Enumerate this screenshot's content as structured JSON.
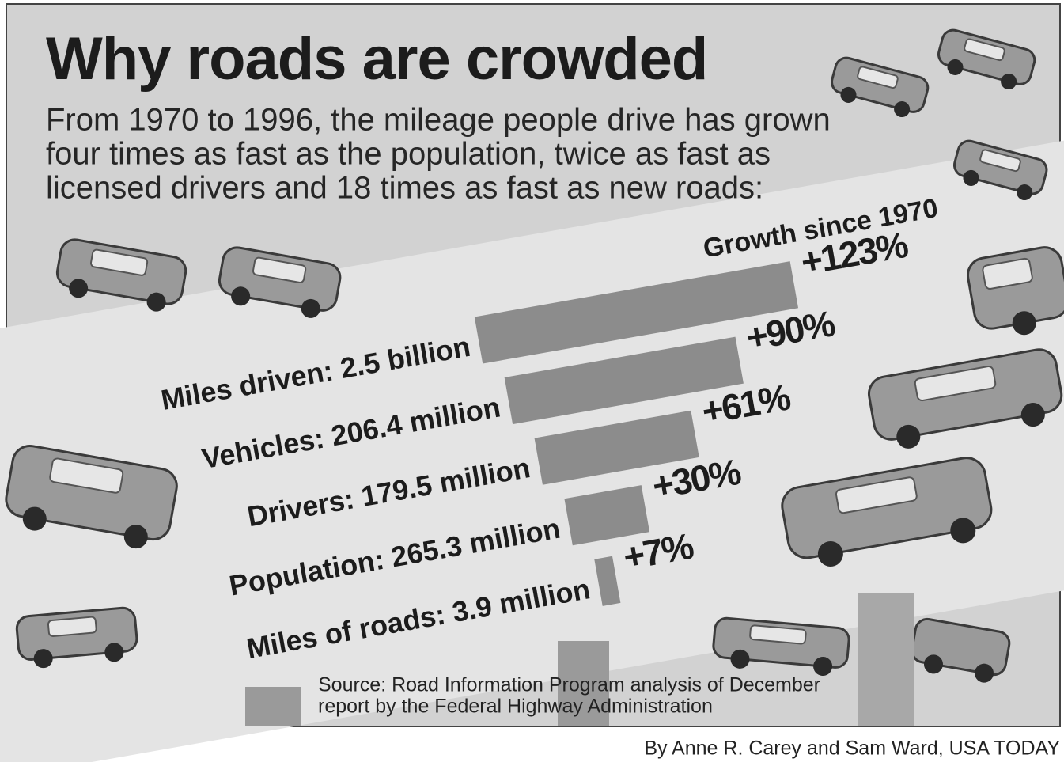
{
  "chart_data": {
    "type": "bar",
    "title": "Why roads are crowded",
    "subtitle": [
      "From 1970 to 1996, the mileage people drive has grown",
      "four times as fast as the population, twice as fast as",
      "licensed drivers and 18 times as fast as new roads:"
    ],
    "value_axis_label": "Growth since 1970",
    "categories": [
      "Miles driven: 2.5 billion",
      "Vehicles: 206.4 million",
      "Drivers: 179.5 million",
      "Population: 265.3 million",
      "Miles of roads: 3.9 million"
    ],
    "values": [
      123,
      90,
      61,
      30,
      7
    ],
    "value_labels": [
      "+123%",
      "+90%",
      "+61%",
      "+30%",
      "+7%"
    ],
    "color": "#8c8c8c",
    "source": [
      "Source: Road Information Program analysis of December",
      "report by the Federal Highway Administration"
    ],
    "byline": "By Anne R. Carey and Sam Ward, USA TODAY"
  }
}
